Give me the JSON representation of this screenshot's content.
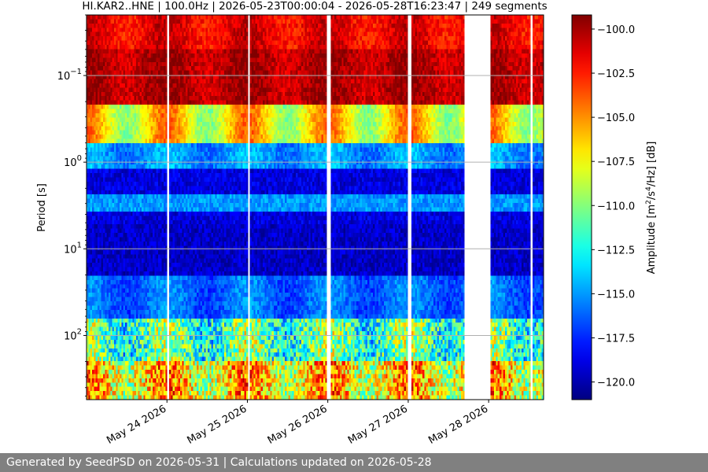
{
  "chart_data": {
    "type": "heatmap",
    "title": "HI.KAR2..HNE | 100.0Hz | 2026-05-23T00:00:04 - 2026-05-28T16:23:47 | 249 segments",
    "ylabel": "Period [s]",
    "yscale": "log",
    "yticks": [
      {
        "value": 0.1,
        "base": "10",
        "exp": "−1"
      },
      {
        "value": 1,
        "base": "10",
        "exp": "0"
      },
      {
        "value": 10,
        "base": "10",
        "exp": "1"
      },
      {
        "value": 100,
        "base": "10",
        "exp": "2"
      }
    ],
    "ylim_top": 0.02,
    "ylim_bottom": 550,
    "xlim": [
      "2026-05-23T00:00:04",
      "2026-05-28T16:23:47"
    ],
    "xticks": [
      {
        "label": "May 24 2026",
        "date": "2026-05-24"
      },
      {
        "label": "May 25 2026",
        "date": "2026-05-25"
      },
      {
        "label": "May 26 2026",
        "date": "2026-05-26"
      },
      {
        "label": "May 27 2026",
        "date": "2026-05-27"
      },
      {
        "label": "May 28 2026",
        "date": "2026-05-28"
      }
    ],
    "segments": 249,
    "data_gaps": [
      {
        "start": "2026-05-24T00:00",
        "end": "2026-05-24T00:45"
      },
      {
        "start": "2026-05-25T00:00",
        "end": "2026-05-25T00:45"
      },
      {
        "start": "2026-05-26T00:00",
        "end": "2026-05-26T00:35"
      },
      {
        "start": "2026-05-27T00:00",
        "end": "2026-05-27T00:45"
      },
      {
        "start": "2026-05-27T17:00",
        "end": "2026-05-28T00:30"
      },
      {
        "start": "2026-05-28T12:30",
        "end": "2026-05-28T13:00"
      }
    ],
    "colorbar": {
      "label_main": "Amplitude [m",
      "label_sup1": "2",
      "label_mid": "/s",
      "label_sup2": "4",
      "label_end": "/Hz] [dB]",
      "colormap": "jet",
      "vmin": -121,
      "vmax": -99.2,
      "ticks": [
        -100.0,
        -102.5,
        -105.0,
        -107.5,
        -110.0,
        -112.5,
        -115.0,
        -117.5,
        -120.0
      ],
      "tick_labels": [
        "−100.0",
        "−102.5",
        "−105.0",
        "−107.5",
        "−110.0",
        "−112.5",
        "−115.0",
        "−117.5",
        "−120.0"
      ]
    },
    "grid": "horizontal at y decades"
  },
  "footer": {
    "text": "Generated by SeedPSD on 2026-05-31 | Calculations updated on 2026-05-28"
  }
}
